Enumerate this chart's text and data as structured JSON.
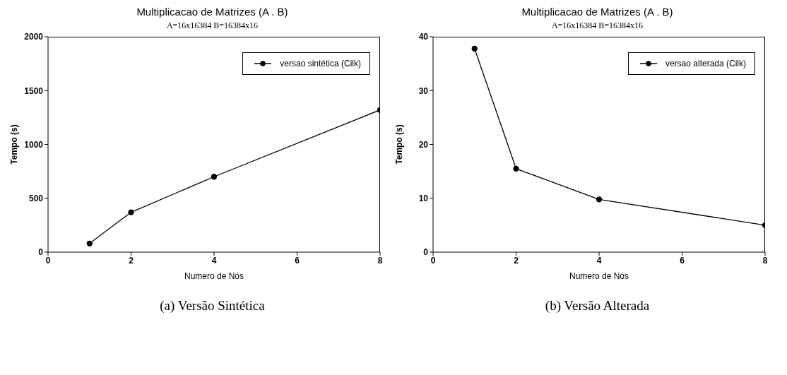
{
  "chart_data": [
    {
      "type": "line",
      "title": "Multiplicacao de Matrizes (A . B)",
      "subtitle": "A=16x16384  B=16384x16",
      "xlabel": "Numero de Nós",
      "ylabel": "Tempo (s)",
      "x": [
        1,
        2,
        4,
        8
      ],
      "series": [
        {
          "name": "versao sintética (Cilk)",
          "color": "#000000",
          "values": [
            80,
            370,
            700,
            1320
          ]
        }
      ],
      "xlim": [
        0,
        8
      ],
      "xticks": [
        0,
        2,
        4,
        6,
        8
      ],
      "ylim": [
        0,
        2000
      ],
      "yticks": [
        0,
        500,
        1000,
        1500,
        2000
      ],
      "legend": "top right",
      "marker": "circle",
      "line_style": "solid",
      "grid": false,
      "annotations": [
        "(a) Versão Sintética"
      ]
    },
    {
      "type": "line",
      "title": "Multiplicacao de Matrizes (A . B)",
      "subtitle": "A=16x16384  B=16384x16",
      "xlabel": "Numero de Nós",
      "ylabel": "Tempo (s)",
      "x": [
        1,
        2,
        4,
        8
      ],
      "series": [
        {
          "name": "versao alterada (Cilk)",
          "color": "#000000",
          "values": [
            37.8,
            15.5,
            9.8,
            5.0
          ]
        }
      ],
      "xlim": [
        0,
        8
      ],
      "xticks": [
        0,
        2,
        4,
        6,
        8
      ],
      "ylim": [
        0,
        40
      ],
      "yticks": [
        0,
        10,
        20,
        30,
        40
      ],
      "legend": "top right",
      "marker": "circle",
      "line_style": "solid",
      "grid": false,
      "annotations": [
        "(b) Versão Alterada"
      ]
    }
  ]
}
